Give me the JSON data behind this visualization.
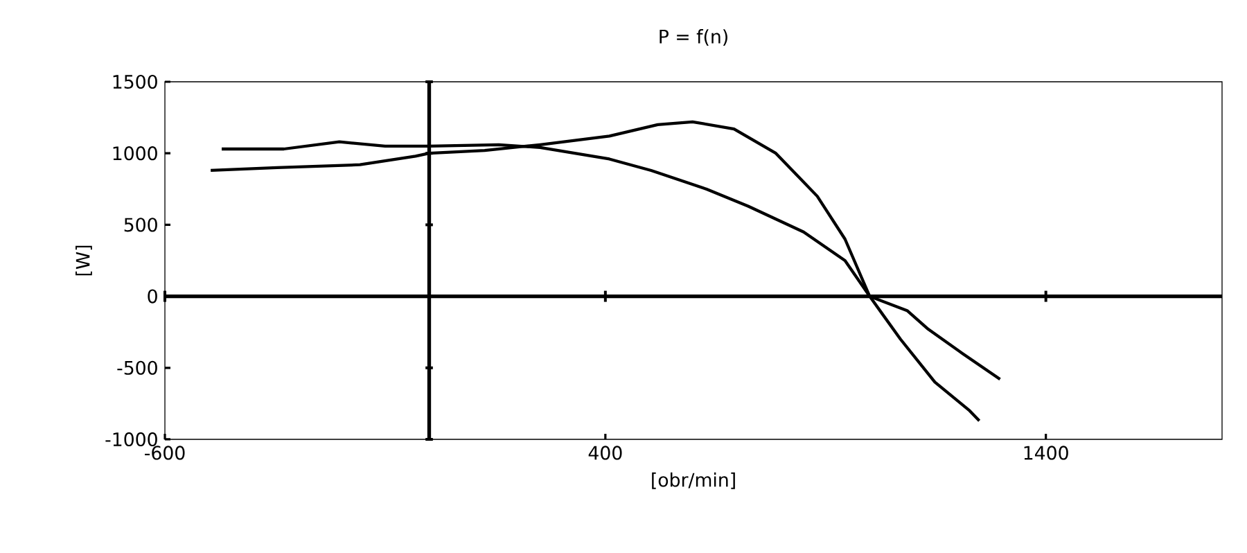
{
  "chart_data": {
    "type": "line",
    "title": "P = f(n)",
    "xlabel": "[obr/min]",
    "ylabel": "[W]",
    "xlim": [
      -600,
      1800
    ],
    "xticks": [
      -600,
      400,
      1400
    ],
    "ylim": [
      -1000,
      1500
    ],
    "yticks": [
      -1000,
      -500,
      0,
      500,
      1000,
      1500
    ],
    "marker": "none",
    "line_style": "solid",
    "series": [
      {
        "color": "#000000",
        "x": [
          -471,
          -330,
          -204,
          -100,
          0,
          158,
          252,
          409,
          504,
          629,
          724,
          850,
          944,
          1000,
          1085,
          1133,
          1211,
          1296
        ],
        "values": [
          1030,
          1030,
          1080,
          1050,
          1050,
          1060,
          1040,
          960,
          880,
          750,
          630,
          450,
          250,
          0,
          -100,
          -230,
          -400,
          -580
        ]
      },
      {
        "color": "#000000",
        "x": [
          -496,
          -345,
          -157,
          -31,
          0,
          126,
          252,
          409,
          519,
          598,
          692,
          787,
          881,
          944,
          1000,
          1070,
          1148,
          1227,
          1249
        ],
        "values": [
          880,
          900,
          920,
          980,
          1000,
          1020,
          1060,
          1120,
          1200,
          1220,
          1170,
          1000,
          700,
          400,
          0,
          -300,
          -600,
          -800,
          -870
        ]
      }
    ]
  }
}
